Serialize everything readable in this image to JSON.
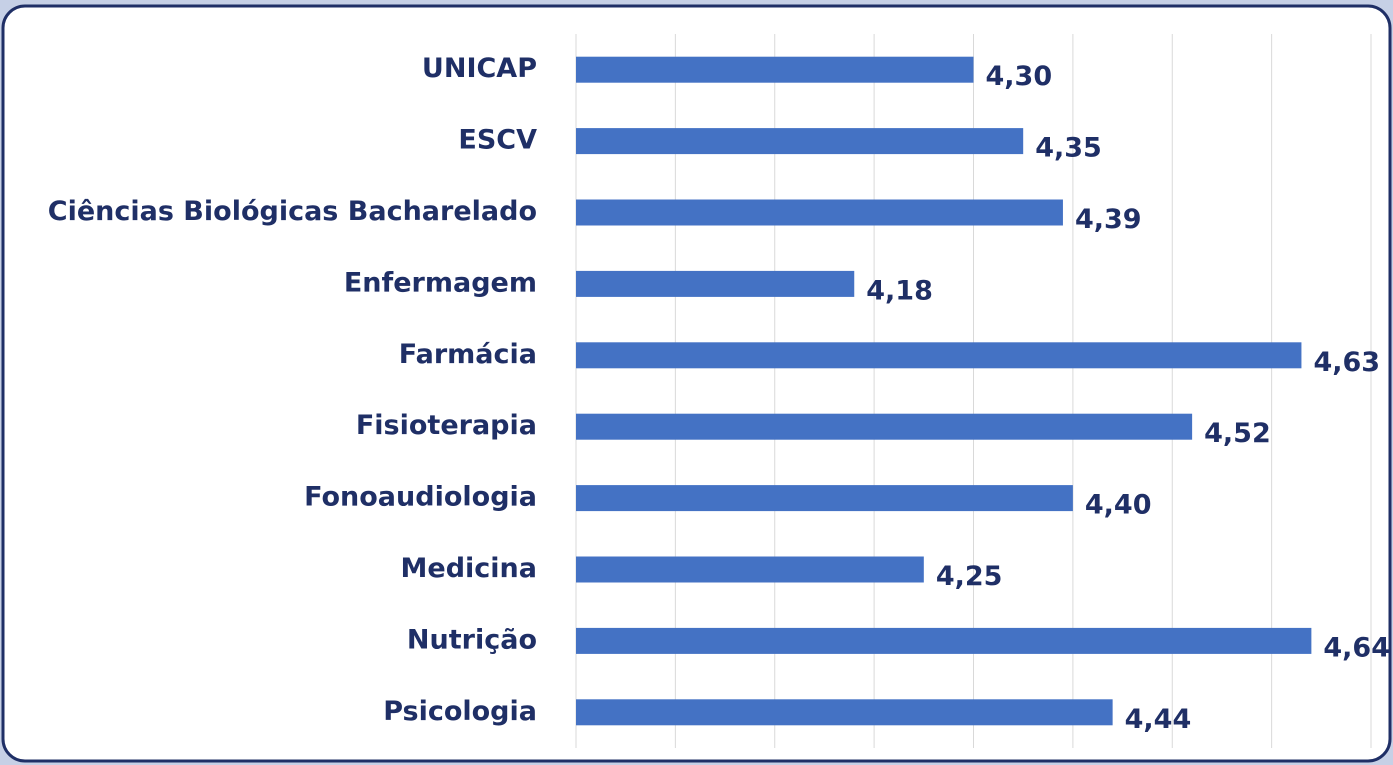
{
  "chart_data": {
    "type": "bar",
    "orientation": "horizontal",
    "categories": [
      "UNICAP",
      "ESCV",
      "Ciências Biológicas Bacharelado",
      "Enfermagem",
      "Farmácia",
      "Fisioterapia",
      "Fonoaudiologia",
      "Medicina",
      "Nutrição",
      "Psicologia"
    ],
    "values": [
      4.3,
      4.35,
      4.39,
      4.18,
      4.63,
      4.52,
      4.4,
      4.25,
      4.64,
      4.44
    ],
    "value_labels": [
      "4,30",
      "4,35",
      "4,39",
      "4,18",
      "4,63",
      "4,52",
      "4,40",
      "4,25",
      "4,64",
      "4,44"
    ],
    "color": "#4472c4",
    "xlim": [
      3.9,
      4.7
    ],
    "xticks": [
      3.9,
      4.0,
      4.1,
      4.2,
      4.3,
      4.4,
      4.5,
      4.6,
      4.7
    ],
    "grid": true
  }
}
